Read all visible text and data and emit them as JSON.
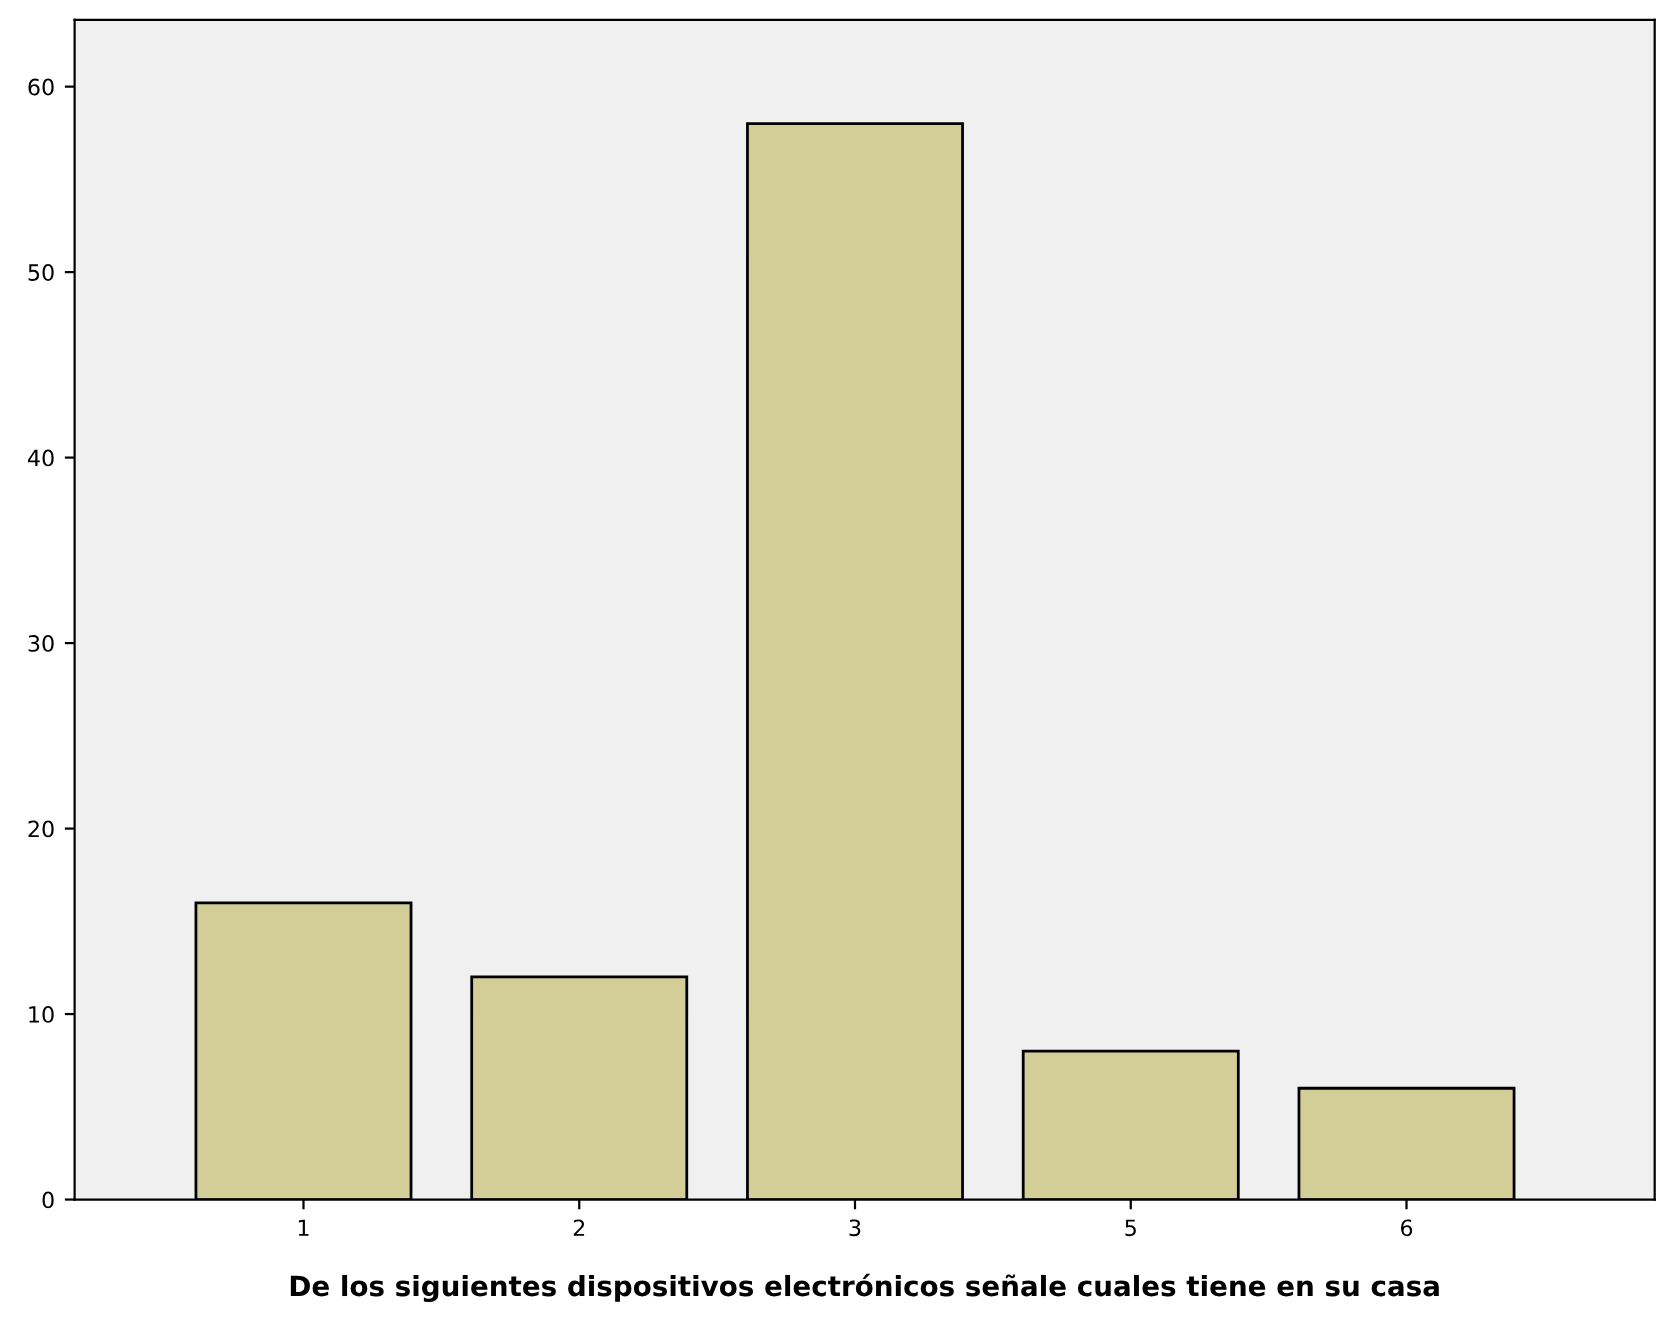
{
  "chart_data": {
    "type": "bar",
    "xlabel": "De los siguientes dispositivos electrónicos señale cuales tiene en su casa",
    "categories": [
      "1",
      "2",
      "3",
      "5",
      "6"
    ],
    "values": [
      16,
      12,
      58,
      8,
      6
    ],
    "color": "#d3ce97",
    "ylim": [
      0,
      63.6
    ],
    "yticks": [
      0,
      10,
      20,
      30,
      40,
      50,
      60
    ],
    "grid": false
  }
}
